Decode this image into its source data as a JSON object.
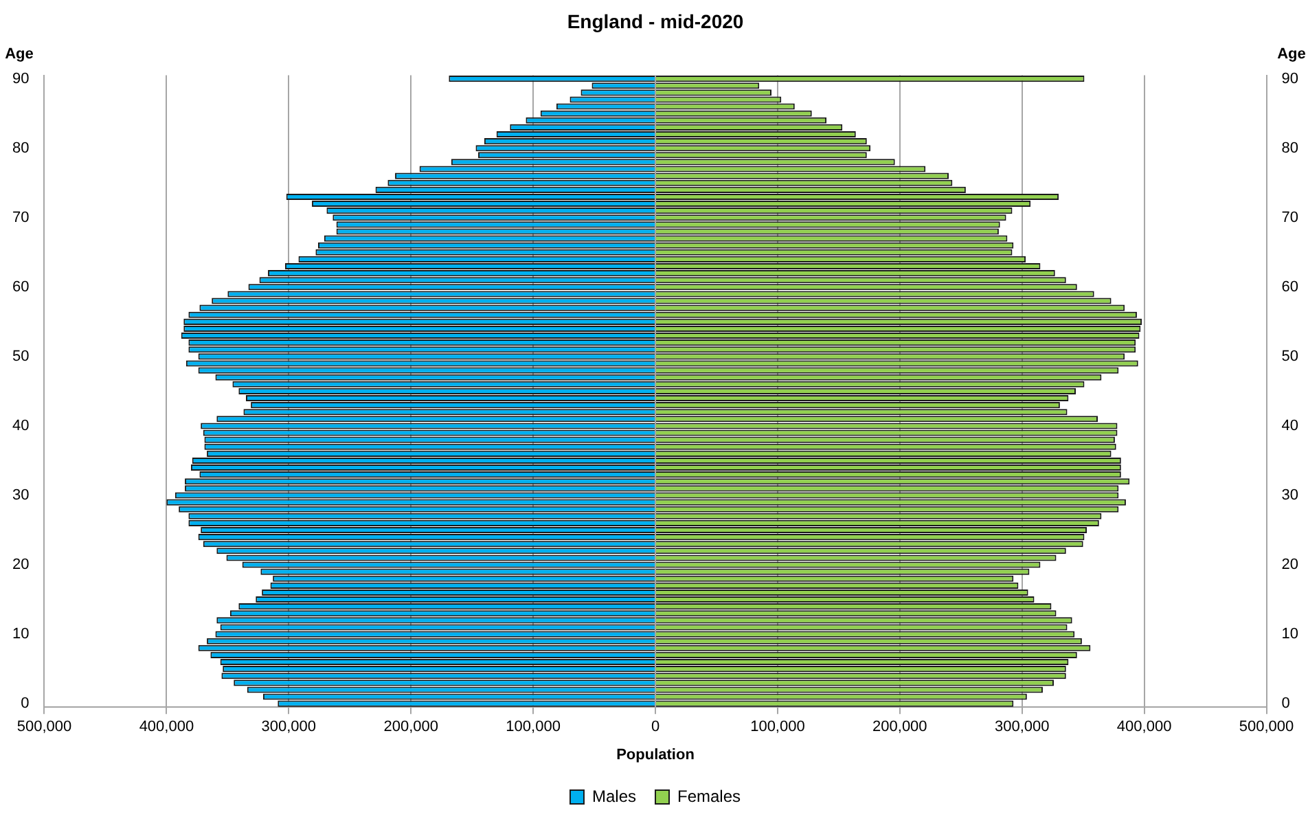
{
  "chart_data": {
    "type": "bar",
    "orientation": "horizontal",
    "title": "England - mid-2020",
    "xlabel": "Population",
    "ylabel": "Age",
    "categories": [
      "90",
      null,
      null,
      null,
      null,
      null,
      null,
      null,
      null,
      null,
      "80",
      null,
      null,
      null,
      null,
      null,
      null,
      null,
      null,
      null,
      "70",
      null,
      null,
      null,
      null,
      null,
      null,
      null,
      null,
      null,
      "60",
      null,
      null,
      null,
      null,
      null,
      null,
      null,
      null,
      null,
      "50",
      null,
      null,
      null,
      null,
      null,
      null,
      null,
      null,
      null,
      "40",
      null,
      null,
      null,
      null,
      null,
      null,
      null,
      null,
      null,
      "30",
      null,
      null,
      null,
      null,
      null,
      null,
      null,
      null,
      null,
      "20",
      null,
      null,
      null,
      null,
      null,
      null,
      null,
      null,
      null,
      "10",
      null,
      null,
      null,
      null,
      null,
      null,
      null,
      null,
      null,
      "0"
    ],
    "series": [
      {
        "name": "Males",
        "color": "#00b0f0",
        "values": [
          -169000,
          -52000,
          -61000,
          -70000,
          -81000,
          -94000,
          -106000,
          -119000,
          -130000,
          -140000,
          -147000,
          -145000,
          -167000,
          -193000,
          -213000,
          -219000,
          -229000,
          -302000,
          -281000,
          -269000,
          -264000,
          -261000,
          -261000,
          -271000,
          -276000,
          -278000,
          -292000,
          -303000,
          -317000,
          -324000,
          -333000,
          -350000,
          -363000,
          -373000,
          -382000,
          -386000,
          -386000,
          -388000,
          -382000,
          -382000,
          -374000,
          -384000,
          -374000,
          -360000,
          -346000,
          -341000,
          -335000,
          -331000,
          -337000,
          -359000,
          -372000,
          -370000,
          -369000,
          -369000,
          -367000,
          -379000,
          -380000,
          -373000,
          -385000,
          -385000,
          -393000,
          -400000,
          -390000,
          -382000,
          -382000,
          -372000,
          -374000,
          -370000,
          -359000,
          -351000,
          -338000,
          -323000,
          -313000,
          -315000,
          -322000,
          -327000,
          -341000,
          -348000,
          -359000,
          -356000,
          -360000,
          -367000,
          -374000,
          -364000,
          -356000,
          -354000,
          -355000,
          -345000,
          -334000,
          -321000,
          -309000
        ]
      },
      {
        "name": "Females",
        "color": "#92d050",
        "values": [
          351000,
          85000,
          95000,
          103000,
          114000,
          128000,
          140000,
          153000,
          164000,
          173000,
          176000,
          173000,
          196000,
          221000,
          240000,
          243000,
          254000,
          330000,
          307000,
          292000,
          287000,
          282000,
          281000,
          288000,
          293000,
          292000,
          303000,
          315000,
          327000,
          336000,
          345000,
          359000,
          373000,
          384000,
          394000,
          398000,
          397000,
          396000,
          393000,
          393000,
          384000,
          395000,
          379000,
          365000,
          351000,
          344000,
          338000,
          331000,
          337000,
          362000,
          378000,
          378000,
          376000,
          377000,
          373000,
          381000,
          381000,
          381000,
          388000,
          379000,
          379000,
          385000,
          379000,
          365000,
          363000,
          353000,
          351000,
          350000,
          336000,
          328000,
          315000,
          306000,
          293000,
          297000,
          305000,
          310000,
          324000,
          328000,
          341000,
          337000,
          343000,
          349000,
          356000,
          345000,
          338000,
          336000,
          336000,
          326000,
          317000,
          304000,
          293000
        ]
      }
    ],
    "xlim": [
      -500000,
      500000
    ],
    "xticks": [
      {
        "value": -500000,
        "label": "500,000"
      },
      {
        "value": -400000,
        "label": "400,000"
      },
      {
        "value": -300000,
        "label": "300,000"
      },
      {
        "value": -200000,
        "label": "200,000"
      },
      {
        "value": -100000,
        "label": "100,000"
      },
      0,
      {
        "value": 100000,
        "label": "100,000"
      },
      {
        "value": 200000,
        "label": "200,000"
      },
      {
        "value": 300000,
        "label": "300,000"
      },
      {
        "value": 400000,
        "label": "400,000"
      },
      {
        "value": 500000,
        "label": "500,000"
      }
    ],
    "grid": "x",
    "legend": "bottom",
    "stacked": true
  }
}
